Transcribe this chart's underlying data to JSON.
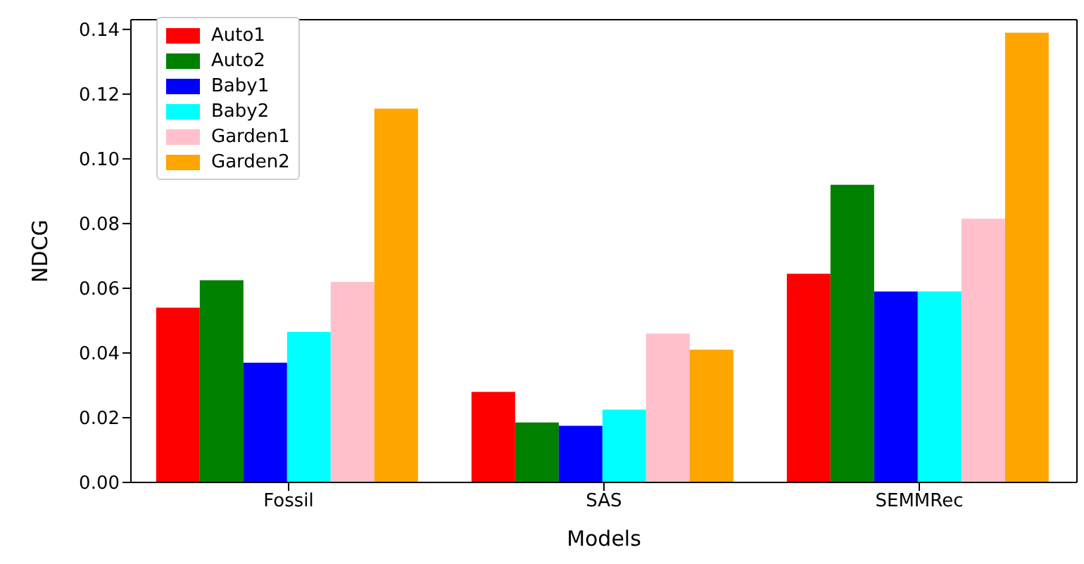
{
  "chart_data": {
    "type": "bar",
    "xlabel": "Models",
    "ylabel": "NDCG",
    "categories": [
      "Fossil",
      "SAS",
      "SEMMRec"
    ],
    "series": [
      {
        "name": "Auto1",
        "color": "#ff0000",
        "values": [
          0.054,
          0.028,
          0.0645
        ]
      },
      {
        "name": "Auto2",
        "color": "#008000",
        "values": [
          0.0625,
          0.0185,
          0.092
        ]
      },
      {
        "name": "Baby1",
        "color": "#0000ff",
        "values": [
          0.037,
          0.0175,
          0.059
        ]
      },
      {
        "name": "Baby2",
        "color": "#00ffff",
        "values": [
          0.0465,
          0.0225,
          0.059
        ]
      },
      {
        "name": "Garden1",
        "color": "#ffc0cb",
        "values": [
          0.062,
          0.046,
          0.0815
        ]
      },
      {
        "name": "Garden2",
        "color": "#ffa500",
        "values": [
          0.1155,
          0.041,
          0.139
        ]
      }
    ],
    "ylim": [
      0,
      0.143
    ],
    "yticks": [
      {
        "value": 0,
        "label": "0.00"
      },
      0.02,
      0.04,
      0.06,
      0.08,
      {
        "value": 0.1,
        "label": "0.10"
      },
      0.12,
      0.14
    ],
    "legend": "top left",
    "grid": false
  }
}
